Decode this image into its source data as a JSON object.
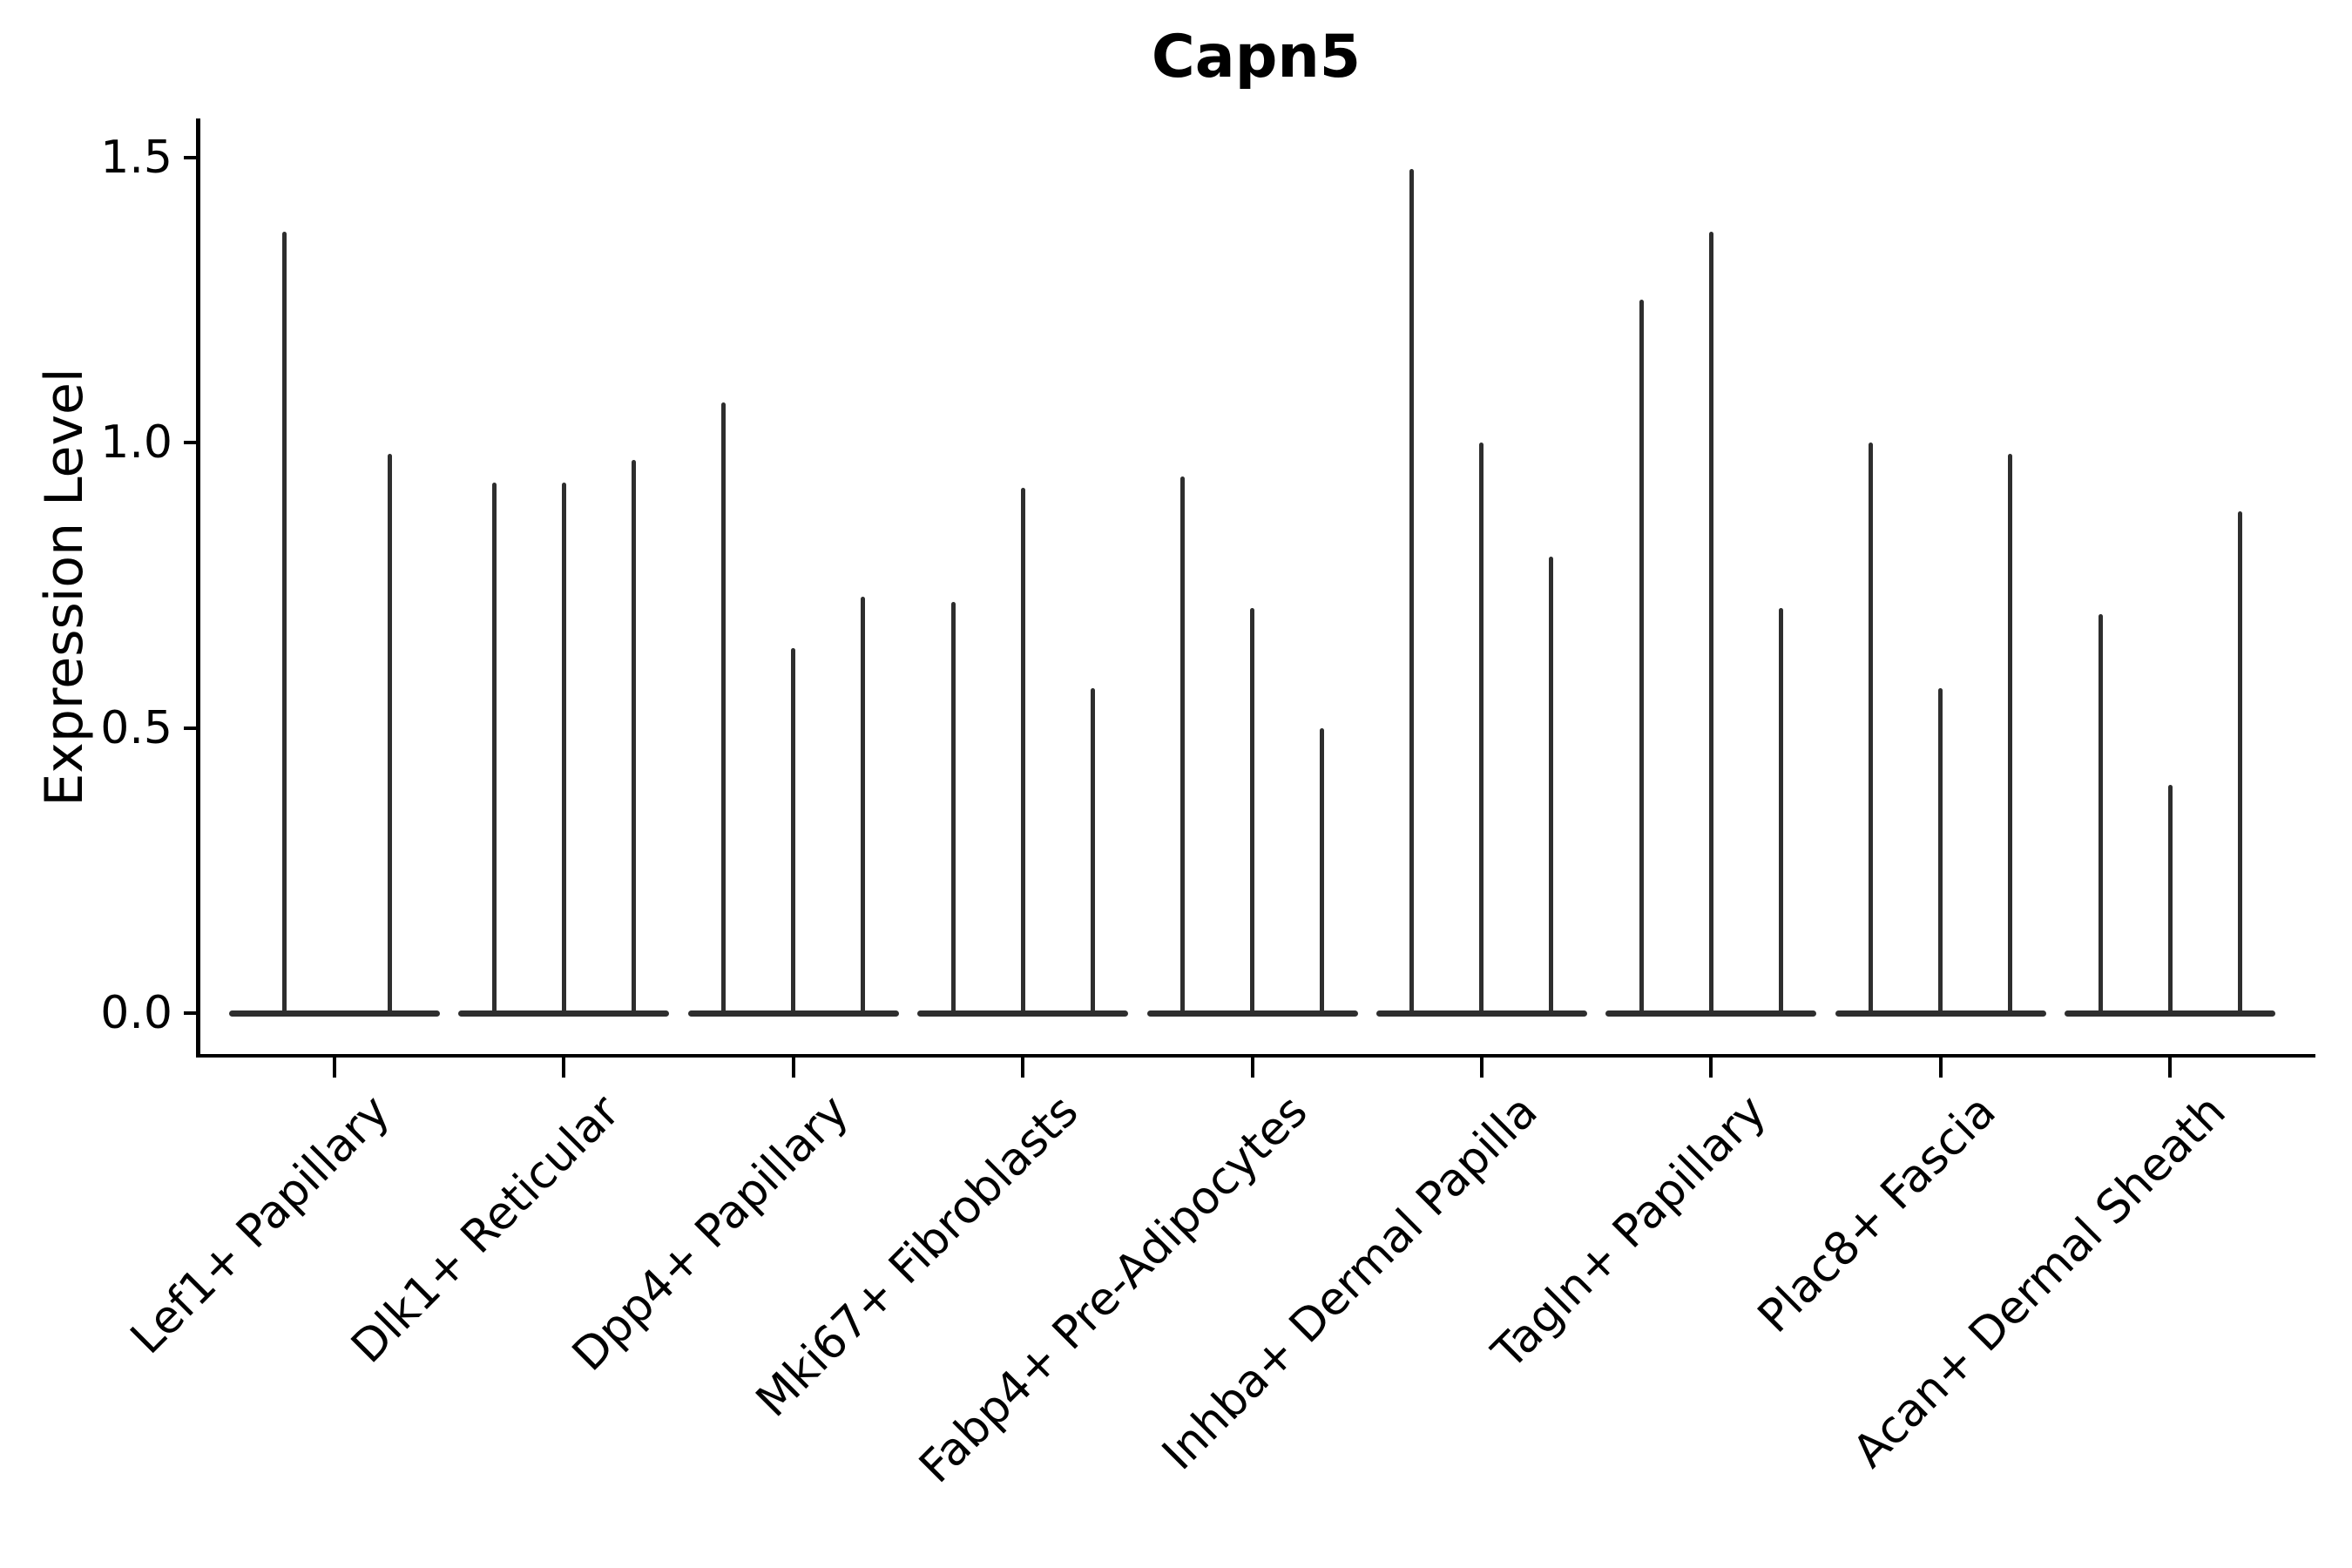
{
  "title": "Capn5",
  "chart_data": {
    "type": "violin",
    "title": "Capn5",
    "xlabel": "",
    "ylabel": "Expression Level",
    "ylim": [
      0,
      1.6
    ],
    "yticks": [
      0.0,
      0.5,
      1.0,
      1.5
    ],
    "ytick_labels": [
      "0.0",
      "0.5",
      "1.0",
      "1.5"
    ],
    "grid": false,
    "legend": "none",
    "violin_color": "#2e2e2e",
    "axis_color": "#000000",
    "categories": [
      "Lef1+ Papillary",
      "Dlk1+ Reticular",
      "Dpp4+ Papillary",
      "Mki67+ Fibroblasts",
      "Fabp4+ Pre-Adipocytes",
      "Inhba+ Dermal Papilla",
      "Tagln+ Papillary",
      "Plac8+ Fascia",
      "Acan+ Dermal Sheath"
    ],
    "groups": [
      {
        "category": "Lef1+ Papillary",
        "violin_peaks": [
          1.37,
          0.98
        ]
      },
      {
        "category": "Dlk1+ Reticular",
        "violin_peaks": [
          0.93,
          0.93,
          0.97
        ]
      },
      {
        "category": "Dpp4+ Papillary",
        "violin_peaks": [
          1.07,
          0.64,
          0.73
        ]
      },
      {
        "category": "Mki67+ Fibroblasts",
        "violin_peaks": [
          0.72,
          0.92,
          0.57
        ]
      },
      {
        "category": "Fabp4+ Pre-Adipocytes",
        "violin_peaks": [
          0.94,
          0.71,
          0.5
        ]
      },
      {
        "category": "Inhba+ Dermal Papilla",
        "violin_peaks": [
          1.48,
          1.0,
          0.8
        ]
      },
      {
        "category": "Tagln+ Papillary",
        "violin_peaks": [
          1.25,
          1.37,
          0.71
        ]
      },
      {
        "category": "Plac8+ Fascia",
        "violin_peaks": [
          1.0,
          0.57,
          0.98
        ]
      },
      {
        "category": "Acan+ Dermal Sheath",
        "violin_peaks": [
          0.7,
          0.4,
          0.88
        ]
      }
    ]
  }
}
